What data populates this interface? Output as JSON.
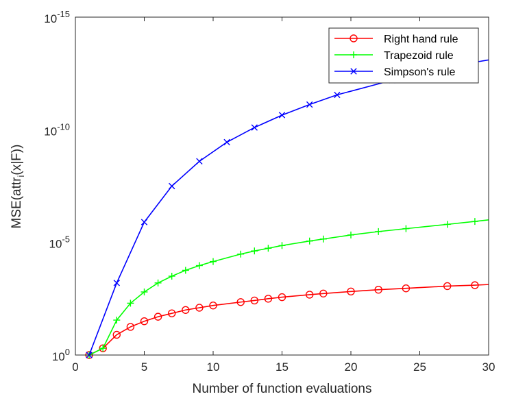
{
  "chart_data": {
    "type": "line",
    "title": "",
    "xlabel": "Number of function evaluations",
    "ylabel": "MSE(attr_i(x|F))",
    "ylabel_parts": {
      "base": "MSE(attr",
      "sub": "i",
      "tail": "(x|F))"
    },
    "xlim": [
      0,
      30
    ],
    "ylim_log10": [
      -15,
      0
    ],
    "yscale": "log",
    "x_ticks": [
      0,
      5,
      10,
      15,
      20,
      25,
      30
    ],
    "x_tick_labels": [
      "0",
      "5",
      "10",
      "15",
      "20",
      "25",
      "30"
    ],
    "y_ticks_log10": [
      0,
      -5,
      -10,
      -15
    ],
    "y_tick_labels": [
      {
        "base": "10",
        "exp": "0"
      },
      {
        "base": "10",
        "exp": "-5"
      },
      {
        "base": "10",
        "exp": "-10"
      },
      {
        "base": "10",
        "exp": "-15"
      }
    ],
    "grid": false,
    "legend_position": "top-right",
    "series": [
      {
        "name": "Right hand rule",
        "color": "#ff0000",
        "marker": "circle",
        "x": [
          1,
          2,
          3,
          4,
          5,
          6,
          7,
          8,
          9,
          10,
          12,
          13,
          14,
          15,
          17,
          18,
          20,
          22,
          24,
          27,
          29,
          30
        ],
        "log10_y": [
          0.0,
          -0.3,
          -0.9,
          -1.25,
          -1.5,
          -1.7,
          -1.85,
          -2.0,
          -2.1,
          -2.2,
          -2.35,
          -2.42,
          -2.5,
          -2.57,
          -2.68,
          -2.73,
          -2.82,
          -2.9,
          -2.96,
          -3.06,
          -3.1,
          -3.13
        ]
      },
      {
        "name": "Trapezoid rule",
        "color": "#00ff00",
        "marker": "plus",
        "x": [
          1,
          2,
          3,
          4,
          5,
          6,
          7,
          8,
          9,
          10,
          12,
          13,
          14,
          15,
          17,
          18,
          20,
          22,
          24,
          27,
          29,
          30
        ],
        "log10_y": [
          0.0,
          -0.3,
          -1.55,
          -2.3,
          -2.8,
          -3.2,
          -3.5,
          -3.76,
          -3.97,
          -4.15,
          -4.48,
          -4.62,
          -4.74,
          -4.86,
          -5.06,
          -5.15,
          -5.33,
          -5.48,
          -5.61,
          -5.8,
          -5.93,
          -6.0
        ]
      },
      {
        "name": "Simpson's rule",
        "color": "#0000ff",
        "marker": "x",
        "x": [
          1,
          3,
          5,
          7,
          9,
          11,
          13,
          15,
          17,
          19,
          23,
          25,
          27,
          29,
          30
        ],
        "log10_y": [
          0.0,
          -3.2,
          -5.9,
          -7.5,
          -8.6,
          -9.45,
          -10.1,
          -10.65,
          -11.12,
          -11.55,
          -12.2,
          -12.5,
          -12.75,
          -13.0,
          -13.1
        ]
      }
    ]
  }
}
